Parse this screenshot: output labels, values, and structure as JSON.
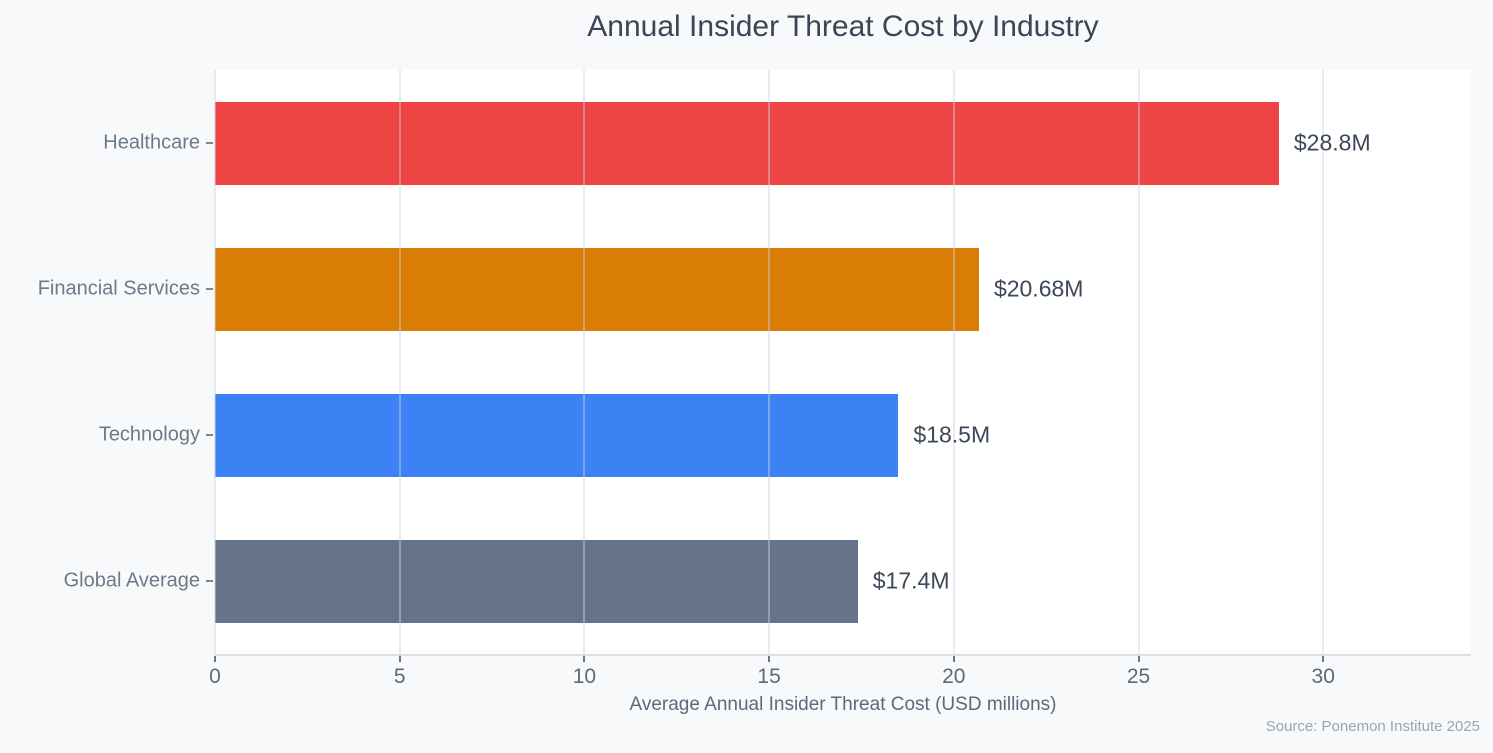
{
  "title": "Annual Insider Threat Cost by Industry",
  "x_axis_title": "Average Annual Insider Threat Cost (USD millions)",
  "source_note": "Source: Ponemon Institute 2025",
  "colors": {
    "figure_background": "#F8F9FA",
    "plot_background": "#FFFFFF",
    "title_text": "#3A4657",
    "category_text": "#6C7A89",
    "value_text": "#3C4858",
    "tick_text": "#5D6979",
    "source_text": "#9AA5B2",
    "axis_line": "#DCDFE3"
  },
  "chart_data": {
    "type": "bar",
    "orientation": "horizontal",
    "title": "Annual Insider Threat Cost by Industry",
    "xlabel": "Average Annual Insider Threat Cost (USD millions)",
    "ylabel": "",
    "categories": [
      "Healthcare",
      "Financial Services",
      "Technology",
      "Global Average"
    ],
    "values": [
      28.8,
      20.68,
      18.5,
      17.4
    ],
    "value_labels": [
      "$28.8M",
      "$20.68M",
      "$18.5M",
      "$17.4M"
    ],
    "bar_colors": [
      "#EE4444",
      "#D97D07",
      "#3D82F4",
      "#65748B"
    ],
    "xlim": [
      0,
      34
    ],
    "xticks": [
      0,
      5,
      10,
      15,
      20,
      25,
      30
    ],
    "grid": true,
    "gridlines_over_bars": true,
    "legend": false,
    "annotation": "Source: Ponemon Institute 2025"
  }
}
